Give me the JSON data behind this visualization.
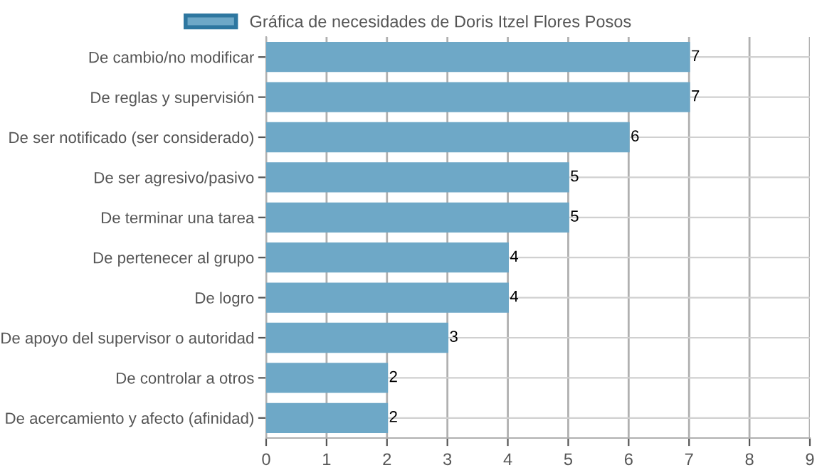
{
  "chart_data": {
    "type": "bar",
    "orientation": "horizontal",
    "categories": [
      "De cambio/no modificar",
      "De reglas y supervisión",
      "De ser notificado (ser considerado)",
      "De ser agresivo/pasivo",
      "De terminar una tarea",
      "De pertenecer al grupo",
      "De logro",
      "De apoyo del supervisor o autoridad",
      "De controlar a otros",
      "De acercamiento y afecto (afinidad)"
    ],
    "series": [
      {
        "name": "Gráfica de necesidades de Doris Itzel Flores Posos",
        "color": "#6ea8c7",
        "values": [
          7,
          7,
          6,
          5,
          5,
          4,
          4,
          3,
          2,
          2
        ]
      }
    ],
    "xlim": [
      0,
      9
    ],
    "xticks": [
      0,
      1,
      2,
      3,
      4,
      5,
      6,
      7,
      8,
      9
    ],
    "grid": true,
    "legend": "top",
    "data_labels": true
  }
}
